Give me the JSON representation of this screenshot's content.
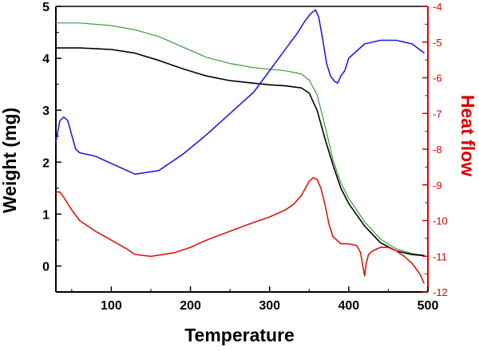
{
  "chart_data": {
    "type": "line",
    "xlabel": "Temperature",
    "ylabel": "Weight (mg)",
    "y2label": "Heat flow",
    "xlim": [
      30,
      500
    ],
    "ylim": [
      -0.5,
      5
    ],
    "y2lim": [
      -12,
      -4
    ],
    "xticks": [
      "100",
      "200",
      "300",
      "400",
      "500"
    ],
    "yticks": [
      "0",
      "1",
      "2",
      "3",
      "4",
      "5"
    ],
    "y2ticks": [
      "-12",
      "-11",
      "-10",
      "-9",
      "-8",
      "-7",
      "-6",
      "-5",
      "-4"
    ],
    "grid": false,
    "legend": "none",
    "colors": {
      "axis_left": "#000000",
      "axis_right": "#dd0000",
      "black_series": "#000000",
      "green_series": "#3a9a3a",
      "blue_series": "#1f1fe0",
      "red_series": "#e0140a"
    },
    "series": [
      {
        "color_key": "green_series",
        "axis": "left",
        "x": [
          30,
          60,
          100,
          130,
          160,
          190,
          220,
          250,
          280,
          300,
          320,
          340,
          350,
          360,
          370,
          380,
          390,
          400,
          420,
          440,
          460,
          480,
          495
        ],
        "y": [
          4.68,
          4.68,
          4.63,
          4.55,
          4.42,
          4.22,
          4.02,
          3.9,
          3.82,
          3.79,
          3.76,
          3.7,
          3.58,
          3.3,
          2.7,
          2.05,
          1.6,
          1.3,
          0.85,
          0.52,
          0.33,
          0.24,
          0.21
        ]
      },
      {
        "color_key": "black_series",
        "axis": "left",
        "x": [
          30,
          60,
          100,
          130,
          160,
          190,
          220,
          250,
          280,
          300,
          320,
          340,
          350,
          360,
          370,
          380,
          390,
          400,
          420,
          440,
          460,
          480,
          495
        ],
        "y": [
          4.2,
          4.2,
          4.17,
          4.1,
          3.96,
          3.8,
          3.66,
          3.57,
          3.52,
          3.49,
          3.47,
          3.43,
          3.33,
          3.0,
          2.45,
          1.95,
          1.5,
          1.2,
          0.77,
          0.45,
          0.29,
          0.22,
          0.2
        ]
      },
      {
        "color_key": "blue_series",
        "axis": "right",
        "x": [
          30,
          35,
          40,
          45,
          50,
          55,
          60,
          70,
          80,
          100,
          130,
          160,
          190,
          220,
          250,
          280,
          300,
          320,
          335,
          345,
          352,
          358,
          362,
          367,
          372,
          377,
          382,
          386,
          390,
          395,
          400,
          420,
          440,
          460,
          480,
          495
        ],
        "y": [
          -7.8,
          -7.2,
          -7.1,
          -7.2,
          -7.6,
          -8.0,
          -8.1,
          -8.15,
          -8.2,
          -8.4,
          -8.7,
          -8.6,
          -8.15,
          -7.6,
          -7.0,
          -6.4,
          -5.8,
          -5.2,
          -4.75,
          -4.4,
          -4.2,
          -4.1,
          -4.3,
          -4.9,
          -5.6,
          -5.95,
          -6.1,
          -6.15,
          -5.95,
          -5.8,
          -5.45,
          -5.05,
          -4.95,
          -4.95,
          -5.05,
          -5.3
        ]
      },
      {
        "color_key": "red_series",
        "axis": "right",
        "x": [
          30,
          35,
          40,
          50,
          60,
          80,
          100,
          120,
          130,
          150,
          180,
          200,
          220,
          250,
          280,
          300,
          320,
          330,
          340,
          350,
          355,
          360,
          365,
          370,
          375,
          380,
          390,
          400,
          410,
          415,
          418,
          420,
          422,
          425,
          430,
          440,
          450,
          460,
          470,
          480,
          490,
          495
        ],
        "y": [
          -9.2,
          -9.2,
          -9.35,
          -9.7,
          -10.0,
          -10.3,
          -10.55,
          -10.8,
          -10.95,
          -11.0,
          -10.9,
          -10.75,
          -10.55,
          -10.3,
          -10.05,
          -9.9,
          -9.7,
          -9.55,
          -9.3,
          -8.9,
          -8.8,
          -8.85,
          -9.1,
          -9.55,
          -10.1,
          -10.45,
          -10.65,
          -10.65,
          -10.7,
          -10.9,
          -11.3,
          -11.55,
          -11.2,
          -10.95,
          -10.85,
          -10.75,
          -10.75,
          -10.85,
          -11.0,
          -11.2,
          -11.5,
          -11.75
        ]
      }
    ]
  }
}
